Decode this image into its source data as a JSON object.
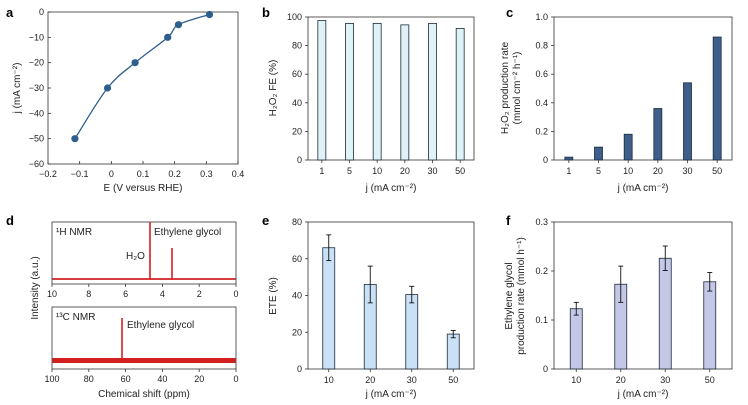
{
  "chart_data": [
    {
      "panel": "a",
      "type": "line",
      "xlabel": "E (V versus RHE)",
      "ylabel": "j (mA cm⁻²)",
      "xlim": [
        -0.2,
        0.4
      ],
      "ylim": [
        -60,
        0
      ],
      "xticks": [
        "−0.2",
        "−0.1",
        "0",
        "0.1",
        "0.2",
        "0.3",
        "0.4"
      ],
      "yticks": [
        "0",
        "−10",
        "−20",
        "−30",
        "−40",
        "−50",
        "−60"
      ],
      "x": [
        -0.115,
        -0.012,
        0.075,
        0.178,
        0.212,
        0.31
      ],
      "y": [
        -50,
        -30,
        -20,
        -10,
        -5,
        -1
      ],
      "color": "#2e5e8e"
    },
    {
      "panel": "b",
      "type": "bar",
      "ylabel": "H₂O₂ FE (%)",
      "xlabel": "j (mA cm⁻²)",
      "categories": [
        "1",
        "5",
        "10",
        "20",
        "30",
        "50"
      ],
      "values": [
        97.5,
        95.5,
        95.5,
        94.5,
        95.5,
        92
      ],
      "ylim": [
        0,
        100
      ],
      "yticks": [
        "0",
        "20",
        "40",
        "60",
        "80",
        "100"
      ],
      "color": "#dff3f7"
    },
    {
      "panel": "c",
      "type": "bar",
      "ylabel_line1": "H₂O₂ production rate",
      "ylabel_line2": "(mmol cm⁻² h⁻¹)",
      "xlabel": "j (mA cm⁻²)",
      "categories": [
        "1",
        "5",
        "10",
        "20",
        "30",
        "50"
      ],
      "values": [
        0.02,
        0.09,
        0.18,
        0.36,
        0.54,
        0.86
      ],
      "ylim": [
        0,
        1.0
      ],
      "yticks": [
        "0",
        "0.2",
        "0.4",
        "0.6",
        "0.8",
        "1.0"
      ],
      "color": "#3e5f8a"
    },
    {
      "panel": "d",
      "type": "nmr",
      "ylabel": "Intensity (a.u.)",
      "xlabel": "Chemical shift (ppm)",
      "h_label": "¹H NMR",
      "h_xticks": [
        "10",
        "8",
        "6",
        "4",
        "2",
        "0"
      ],
      "h_peaks": [
        {
          "label": "H₂O",
          "ppm": 4.8
        },
        {
          "label": "Ethylene glycol",
          "ppm": 3.6
        }
      ],
      "c_label": "¹³C NMR",
      "c_xticks": [
        "100",
        "80",
        "60",
        "40",
        "20",
        "0"
      ],
      "c_peaks": [
        {
          "label": "Ethylene glycol",
          "ppm": 63
        }
      ],
      "color": "#d21f1f"
    },
    {
      "panel": "e",
      "type": "bar",
      "ylabel": "ETE (%)",
      "xlabel": "j (mA cm⁻²)",
      "categories": [
        "10",
        "20",
        "30",
        "50"
      ],
      "values": [
        66,
        46,
        40.5,
        19
      ],
      "errors": [
        7,
        10,
        4.5,
        2
      ],
      "ylim": [
        0,
        80
      ],
      "yticks": [
        "0",
        "20",
        "40",
        "60",
        "80"
      ],
      "color": "#c9e0f5"
    },
    {
      "panel": "f",
      "type": "bar",
      "ylabel_line1": "Ethylene glycol",
      "ylabel_line2": "production rate (mmol h⁻¹)",
      "xlabel": "j (mA cm⁻²)",
      "categories": [
        "10",
        "20",
        "30",
        "50"
      ],
      "values": [
        0.123,
        0.173,
        0.226,
        0.178
      ],
      "errors": [
        0.013,
        0.037,
        0.025,
        0.019
      ],
      "ylim": [
        0,
        0.3
      ],
      "yticks": [
        "0",
        "0.1",
        "0.2",
        "0.3"
      ],
      "color": "#c4c8e6"
    }
  ]
}
